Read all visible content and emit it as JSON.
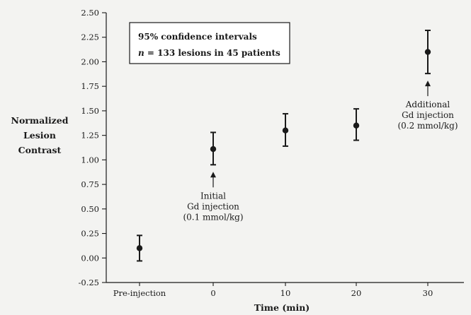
{
  "chart_data": {
    "type": "scatter",
    "xlabel": "Time (min)",
    "ylabel": [
      "Normalized",
      "Lesion",
      "Contrast"
    ],
    "x_categories": [
      "Pre-injection",
      "0",
      "10",
      "20",
      "30"
    ],
    "y_ticks": [
      "2.50",
      "2.25",
      "2.00",
      "1.75",
      "1.50",
      "1.25",
      "1.00",
      "0.75",
      "0.50",
      "0.25",
      "0.00",
      "-0.25"
    ],
    "ylim": [
      -0.25,
      2.5
    ],
    "grid": false,
    "points": [
      {
        "x": "Pre-injection",
        "y": 0.1,
        "ci_low": -0.03,
        "ci_high": 0.23
      },
      {
        "x": "0",
        "y": 1.11,
        "ci_low": 0.95,
        "ci_high": 1.28
      },
      {
        "x": "10",
        "y": 1.3,
        "ci_low": 1.14,
        "ci_high": 1.47
      },
      {
        "x": "20",
        "y": 1.35,
        "ci_low": 1.2,
        "ci_high": 1.52
      },
      {
        "x": "30",
        "y": 2.1,
        "ci_low": 1.88,
        "ci_high": 2.32
      }
    ],
    "legend": {
      "placement": "top-left",
      "line1": "95% confidence intervals",
      "line2_italic": "n",
      "line2_rest": " = 133 lesions in 45 patients"
    },
    "annotations": [
      {
        "x": "0",
        "lines": [
          "Initial",
          "Gd injection",
          "(0.1 mmol/kg)"
        ],
        "position": "below"
      },
      {
        "x": "30",
        "lines": [
          "Additional",
          "Gd injection",
          "(0.2 mmol/kg)"
        ],
        "position": "below"
      }
    ],
    "colors": {
      "ink": "#1a1a1a",
      "background": "#f3f3f1"
    }
  }
}
